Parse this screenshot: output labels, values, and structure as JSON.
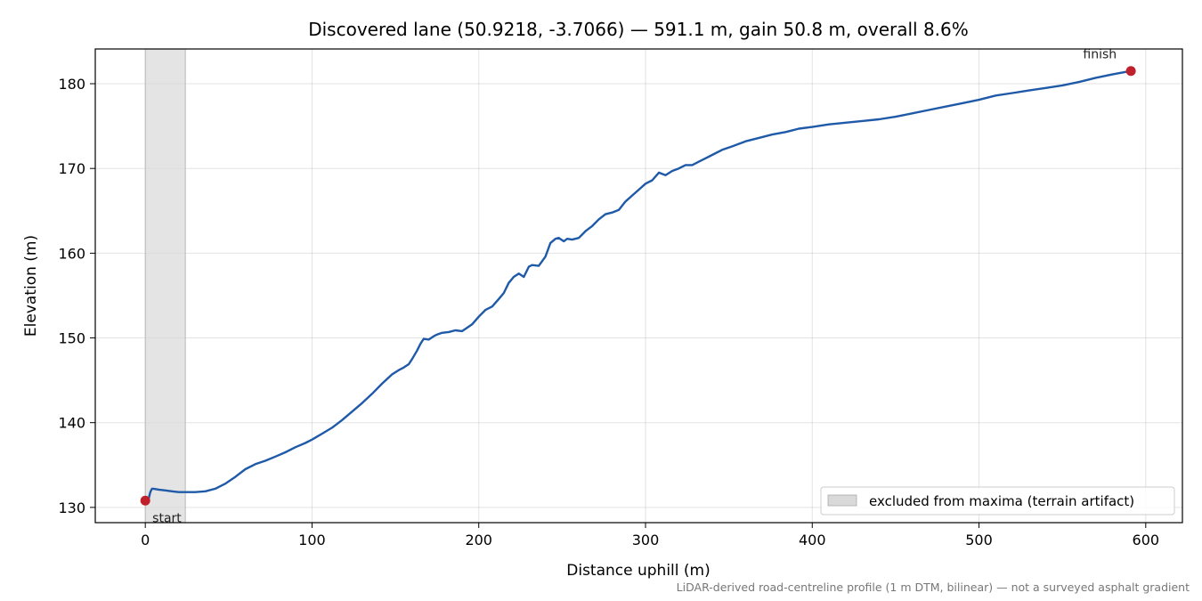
{
  "chart_data": {
    "type": "line",
    "title": "Discovered lane (50.9218, -3.7066) — 591.1 m, gain 50.8 m, overall 8.6%",
    "xlabel": "Distance uphill (m)",
    "ylabel": "Elevation (m)",
    "xlim": [
      -30,
      622
    ],
    "ylim": [
      128.2,
      184.1
    ],
    "xticks": [
      0,
      100,
      200,
      300,
      400,
      500,
      600
    ],
    "yticks": [
      130,
      140,
      150,
      160,
      170,
      180
    ],
    "grid": true,
    "legend_position": "lower-right",
    "excluded_region": {
      "x": [
        0,
        24
      ],
      "label": "excluded from maxima (terrain artifact)",
      "color": "#d9d9d9"
    },
    "line_color": "#1f5aa8",
    "marker_color": "#c0202b",
    "series": [
      {
        "x": [
          0,
          2,
          3,
          4,
          5,
          8,
          12,
          16,
          20,
          24,
          30,
          36,
          42,
          48,
          54,
          60,
          66,
          72,
          78,
          84,
          90,
          96,
          100,
          106,
          112,
          118,
          124,
          130,
          136,
          142,
          148,
          152,
          155,
          158,
          160,
          163,
          165,
          167,
          170,
          173,
          175,
          178,
          182,
          186,
          190,
          193,
          196,
          200,
          204,
          208,
          212,
          215,
          218,
          221,
          224,
          227,
          230,
          232,
          236,
          240,
          243,
          246,
          248,
          251,
          253,
          256,
          260,
          264,
          268,
          272,
          276,
          280,
          284,
          288,
          292,
          296,
          300,
          304,
          308,
          312,
          316,
          320,
          324,
          328,
          332,
          336,
          340,
          346,
          352,
          360,
          368,
          376,
          384,
          392,
          400,
          410,
          420,
          430,
          440,
          450,
          460,
          470,
          480,
          490,
          500,
          510,
          520,
          530,
          540,
          550,
          560,
          570,
          580,
          591.1
        ],
        "y": [
          130.8,
          131.0,
          131.8,
          132.2,
          132.2,
          132.1,
          132.0,
          131.9,
          131.8,
          131.8,
          131.8,
          131.9,
          132.2,
          132.8,
          133.6,
          134.5,
          135.1,
          135.5,
          136.0,
          136.5,
          137.1,
          137.6,
          138.0,
          138.7,
          139.4,
          140.3,
          141.3,
          142.3,
          143.4,
          144.6,
          145.7,
          146.2,
          146.5,
          146.9,
          147.5,
          148.5,
          149.3,
          149.9,
          149.8,
          150.2,
          150.4,
          150.6,
          150.7,
          150.9,
          150.8,
          151.2,
          151.6,
          152.5,
          153.3,
          153.7,
          154.6,
          155.3,
          156.5,
          157.2,
          157.6,
          157.2,
          158.4,
          158.6,
          158.5,
          159.6,
          161.2,
          161.7,
          161.8,
          161.4,
          161.7,
          161.6,
          161.8,
          162.6,
          163.2,
          164.0,
          164.6,
          164.8,
          165.1,
          166.1,
          166.8,
          167.5,
          168.2,
          168.6,
          169.5,
          169.2,
          169.7,
          170.0,
          170.4,
          170.4,
          170.8,
          171.2,
          171.6,
          172.2,
          172.6,
          173.2,
          173.6,
          174.0,
          174.3,
          174.7,
          174.9,
          175.2,
          175.4,
          175.6,
          175.8,
          176.1,
          176.5,
          176.9,
          177.3,
          177.7,
          178.1,
          178.6,
          178.9,
          179.2,
          179.5,
          179.8,
          180.2,
          180.7,
          181.1,
          181.5
        ]
      }
    ],
    "annotations": [
      {
        "text": "start",
        "x": 0,
        "y": 130.8,
        "anchor": "below-right"
      },
      {
        "text": "finish",
        "x": 591.1,
        "y": 181.5,
        "anchor": "above-left"
      }
    ],
    "footnote": "LiDAR-derived road-centreline profile (1 m DTM, bilinear) — not a surveyed asphalt gradient"
  }
}
